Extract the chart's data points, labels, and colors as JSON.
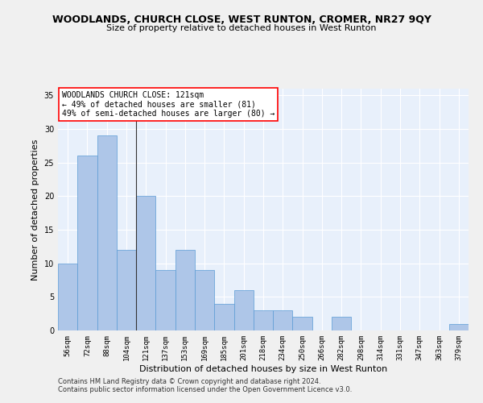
{
  "title": "WOODLANDS, CHURCH CLOSE, WEST RUNTON, CROMER, NR27 9QY",
  "subtitle": "Size of property relative to detached houses in West Runton",
  "xlabel": "Distribution of detached houses by size in West Runton",
  "ylabel": "Number of detached properties",
  "categories": [
    "56sqm",
    "72sqm",
    "88sqm",
    "104sqm",
    "121sqm",
    "137sqm",
    "153sqm",
    "169sqm",
    "185sqm",
    "201sqm",
    "218sqm",
    "234sqm",
    "250sqm",
    "266sqm",
    "282sqm",
    "298sqm",
    "314sqm",
    "331sqm",
    "347sqm",
    "363sqm",
    "379sqm"
  ],
  "values": [
    10,
    26,
    29,
    12,
    20,
    9,
    12,
    9,
    4,
    6,
    3,
    3,
    2,
    0,
    2,
    0,
    0,
    0,
    0,
    0,
    1
  ],
  "bar_color": "#aec6e8",
  "bar_edge_color": "#5b9bd5",
  "vline_index": 4,
  "vline_color": "#333333",
  "annotation_box_text": "WOODLANDS CHURCH CLOSE: 121sqm\n← 49% of detached houses are smaller (81)\n49% of semi-detached houses are larger (80) →",
  "title_fontsize": 9,
  "subtitle_fontsize": 8,
  "xlabel_fontsize": 8,
  "ylabel_fontsize": 8,
  "annotation_fontsize": 7,
  "tick_fontsize": 6.5,
  "ytick_fontsize": 7,
  "ylim": [
    0,
    36
  ],
  "yticks": [
    0,
    5,
    10,
    15,
    20,
    25,
    30,
    35
  ],
  "background_color": "#e8f0fb",
  "grid_color": "#ffffff",
  "fig_bg_color": "#f0f0f0",
  "footer_line1": "Contains HM Land Registry data © Crown copyright and database right 2024.",
  "footer_line2": "Contains public sector information licensed under the Open Government Licence v3.0.",
  "footer_fontsize": 6
}
